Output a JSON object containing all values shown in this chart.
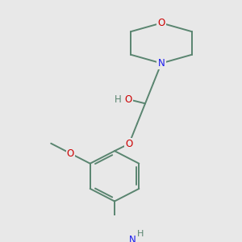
{
  "bg_color": "#e8e8e8",
  "bond_color": "#5a8570",
  "atom_colors": {
    "O": "#cc0000",
    "N": "#1a1aee",
    "C": "#5a8570",
    "H": "#5a8570"
  },
  "line_width": 1.4,
  "font_size": 8.5,
  "figsize": [
    3.0,
    3.0
  ],
  "dpi": 100
}
